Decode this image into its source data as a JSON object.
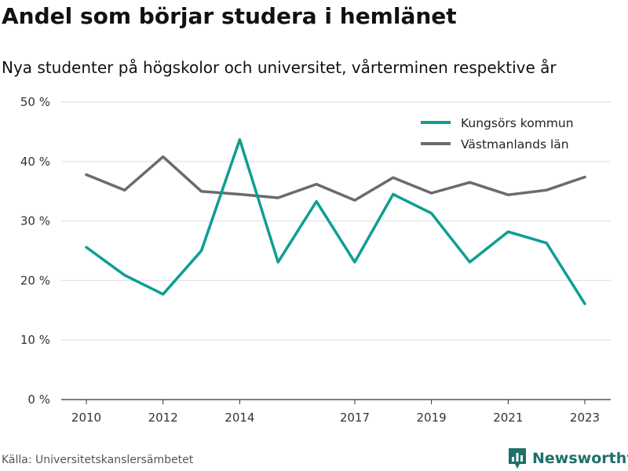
{
  "chart_data": {
    "type": "line",
    "title": "Andel som börjar studera i hemlänet",
    "subtitle": "Nya studenter på högskolor och universitet, vårterminen respektive år",
    "x": [
      2010,
      2011,
      2012,
      2013,
      2014,
      2015,
      2016,
      2017,
      2018,
      2019,
      2020,
      2021,
      2022,
      2023
    ],
    "x_tick_labels": [
      "2010",
      "2012",
      "2014",
      "2017",
      "2019",
      "2021",
      "2023"
    ],
    "y_tick_labels": [
      "0 %",
      "10 %",
      "20 %",
      "30 %",
      "40 %",
      "50 %"
    ],
    "ylim": [
      0,
      50
    ],
    "grid": true,
    "legend_position": "top-right",
    "series": [
      {
        "name": "Kungsörs kommun",
        "color": "#0e9e92",
        "values": [
          25.6,
          20.9,
          17.7,
          25.0,
          43.7,
          23.1,
          33.3,
          23.1,
          34.5,
          31.3,
          23.1,
          28.2,
          26.3,
          16.1
        ]
      },
      {
        "name": "Västmanlands län",
        "color": "#6b6a70",
        "values": [
          37.8,
          35.2,
          40.8,
          35.0,
          34.5,
          33.9,
          36.2,
          33.5,
          37.3,
          34.7,
          36.5,
          34.4,
          35.2,
          37.4
        ]
      }
    ]
  },
  "footer": {
    "source": "Källa: Universitetskanslersämbetet",
    "brand": "Newsworthy",
    "brand_icon": "bar-chart-badge-icon"
  }
}
